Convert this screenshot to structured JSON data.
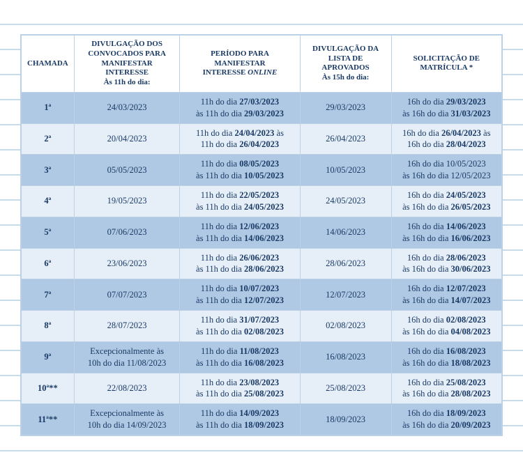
{
  "colors": {
    "text": "#1a3a66",
    "band_a": "#afc9e4",
    "band_b": "#e6eff8",
    "border": "#bcd1e6",
    "line": "#c7dbe8",
    "bg": "#ffffff"
  },
  "fontsize": {
    "header": 11,
    "body": 12.5
  },
  "headers": {
    "chamada": "CHAMADA",
    "divulgacao_convocados_l1": "DIVULGAÇÃO DOS",
    "divulgacao_convocados_l2": "CONVOCADOS PARA",
    "divulgacao_convocados_l3": "MANIFESTAR",
    "divulgacao_convocados_l4": "INTERESSE",
    "divulgacao_convocados_l5": "Às 11h do dia:",
    "periodo_l1": "PERÍODO PARA",
    "periodo_l2": "MANIFESTAR",
    "periodo_l3a": "INTERESSE ",
    "periodo_l3b": "ONLINE",
    "divulgacao_aprovados_l1": "DIVULGAÇÃO DA",
    "divulgacao_aprovados_l2": "LISTA DE",
    "divulgacao_aprovados_l3": "APROVADOS",
    "divulgacao_aprovados_l4": "Às 15h do dia:",
    "solicitacao_l1": "SOLICITAÇÃO DE",
    "solicitacao_l2": "MATRÍCULA *"
  },
  "rows": [
    {
      "chamada": "1ª",
      "div_conv": "24/03/2023",
      "periodo_l1a": "11h do dia ",
      "periodo_l1b": "27/03/2023",
      "periodo_l2a": "às 11h do dia ",
      "periodo_l2b": "29/03/2023",
      "aprov": "29/03/2023",
      "mat_l1a": "16h do dia ",
      "mat_l1b": "29/03/2023",
      "mat_l2a": "às 16h do dia ",
      "mat_l2b": "31/03/2023"
    },
    {
      "chamada": "2ª",
      "div_conv": "20/04/2023",
      "periodo_l1a": "11h do dia ",
      "periodo_l1b": "24/04/2023",
      "periodo_l1c": " às",
      "periodo_l2a": "11h do dia ",
      "periodo_l2b": "26/04/2023",
      "aprov": "26/04/2023",
      "mat_l1a": "16h do dia ",
      "mat_l1b": "26/04/2023",
      "mat_l1c": " às",
      "mat_l2a": "16h do dia ",
      "mat_l2b": "28/04/2023"
    },
    {
      "chamada": "3ª",
      "div_conv": "05/05/2023",
      "periodo_l1a": "11h do dia ",
      "periodo_l1b": "08/05/2023",
      "periodo_l2a": "às 11h do dia ",
      "periodo_l2b": "10/05/2023",
      "aprov": "10/05/2023",
      "mat_l1a": "16h do dia 10/05/2023",
      "mat_l2a": "às 16h do dia 12/05/2023"
    },
    {
      "chamada": "4ª",
      "div_conv": "19/05/2023",
      "periodo_l1a": "11h do dia ",
      "periodo_l1b": "22/05/2023",
      "periodo_l2a": "às 11h do dia ",
      "periodo_l2b": "24/05/2023",
      "aprov": "24/05/2023",
      "mat_l1a": "16h do dia ",
      "mat_l1b": "24/05/2023",
      "mat_l2a": "às 16h do dia ",
      "mat_l2b": "26/05/2023"
    },
    {
      "chamada": "5ª",
      "div_conv": "07/06/2023",
      "periodo_l1a": "11h do dia ",
      "periodo_l1b": "12/06/2023",
      "periodo_l2a": "às 11h do dia ",
      "periodo_l2b": "14/06/2023",
      "aprov": "14/06/2023",
      "mat_l1a": "16h do dia ",
      "mat_l1b": "14/06/2023",
      "mat_l2a": "às 16h do dia ",
      "mat_l2b": "16/06/2023"
    },
    {
      "chamada": "6ª",
      "div_conv": "23/06/2023",
      "periodo_l1a": "11h do dia ",
      "periodo_l1b": "26/06/2023",
      "periodo_l2a": "às 11h do dia ",
      "periodo_l2b": "28/06/2023",
      "aprov": "28/06/2023",
      "mat_l1a": "16h do dia ",
      "mat_l1b": "28/06/2023",
      "mat_l2a": "às 16h do dia ",
      "mat_l2b": "30/06/2023"
    },
    {
      "chamada": "7ª",
      "div_conv": "07/07/2023",
      "periodo_l1a": "11h do dia ",
      "periodo_l1b": "10/07/2023",
      "periodo_l2a": "às 11h do dia ",
      "periodo_l2b": "12/07/2023",
      "aprov": "12/07/2023",
      "mat_l1a": "16h do dia ",
      "mat_l1b": "12/07/2023",
      "mat_l2a": "às 16h do dia ",
      "mat_l2b": "14/07/2023"
    },
    {
      "chamada": "8ª",
      "div_conv": "28/07/2023",
      "periodo_l1a": "11h do dia ",
      "periodo_l1b": "31/07/2023",
      "periodo_l2a": "às 11h do dia ",
      "periodo_l2b": "02/08/2023",
      "aprov": "02/08/2023",
      "mat_l1a": "16h do dia ",
      "mat_l1b": "02/08/2023",
      "mat_l2a": "às 16h do dia ",
      "mat_l2b": "04/08/2023"
    },
    {
      "chamada": "9ª",
      "div_conv_l1": "Excepcionalmente às",
      "div_conv_l2": "10h do dia 11/08/2023",
      "periodo_l1a": "11h do dia ",
      "periodo_l1b": "11/08/2023",
      "periodo_l2a": "às 11h do dia ",
      "periodo_l2b": "16/08/2023",
      "aprov": "16/08/2023",
      "mat_l1a": "16h do dia ",
      "mat_l1b": "16/08/2023",
      "mat_l2a": "às 16h do dia ",
      "mat_l2b": "18/08/2023"
    },
    {
      "chamada": "10ª**",
      "div_conv": "22/08/2023",
      "periodo_l1a": "11h do dia ",
      "periodo_l1b": "23/08/2023",
      "periodo_l2a": "às 11h do dia ",
      "periodo_l2b": "25/08/2023",
      "aprov": "25/08/2023",
      "mat_l1a": "16h do dia ",
      "mat_l1b": "25/08/2023",
      "mat_l2a": "às 16h do dia ",
      "mat_l2b": "28/08/2023"
    },
    {
      "chamada": "11ª**",
      "div_conv_l1": "Excepcionalmente às",
      "div_conv_l2": "10h do dia 14/09/2023",
      "periodo_l1a": "11h do dia ",
      "periodo_l1b": "14/09/2023",
      "periodo_l2a": "às 11h do dia ",
      "periodo_l2b": "18/09/2023",
      "aprov": "18/09/2023",
      "mat_l1a": "16h do dia ",
      "mat_l1b": "18/09/2023",
      "mat_l2a": "às 16h do dia ",
      "mat_l2b": "20/09/2023"
    }
  ]
}
